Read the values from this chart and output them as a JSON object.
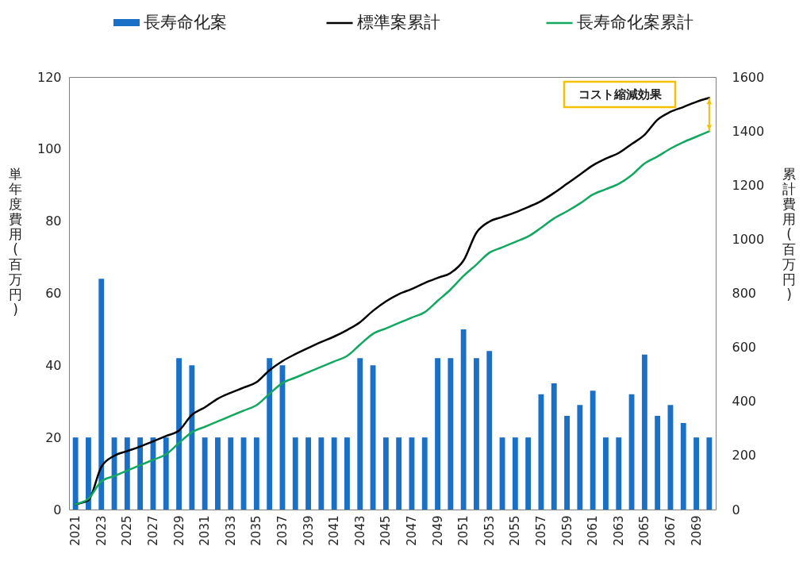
{
  "chart_data": {
    "type": "bar",
    "legend": "top",
    "ylabel": "単年度費用(百万円)",
    "y2label": "累計費用(百万円)",
    "categories": [
      "2021",
      null,
      "2023",
      null,
      "2025",
      null,
      "2027",
      null,
      "2029",
      null,
      "2031",
      null,
      "2033",
      null,
      "2035",
      null,
      "2037",
      null,
      "2039",
      null,
      "2041",
      null,
      "2043",
      null,
      "2045",
      null,
      "2047",
      null,
      "2049",
      null,
      "2051",
      null,
      "2053",
      null,
      "2055",
      null,
      "2057",
      null,
      "2059",
      null,
      "2061",
      null,
      "2063",
      null,
      "2065",
      null,
      "2067",
      null,
      "2069",
      null
    ],
    "ylim": [
      0,
      120
    ],
    "yticks": [
      0,
      20,
      40,
      60,
      80,
      100,
      120
    ],
    "y2lim": [
      0,
      1600
    ],
    "y2ticks": [
      0,
      200,
      400,
      600,
      800,
      1000,
      1200,
      1400,
      1600
    ],
    "series": [
      {
        "name": "長寿命化案",
        "color": "#1a6fc6",
        "values": [
          20,
          20,
          64,
          20,
          20,
          20,
          20,
          20,
          42,
          40,
          20,
          20,
          20,
          20,
          20,
          42,
          40,
          20,
          20,
          20,
          20,
          20,
          42,
          40,
          20,
          20,
          20,
          20,
          42,
          42,
          50,
          42,
          44,
          20,
          20,
          20,
          32,
          35,
          26,
          29,
          33,
          20,
          20,
          32,
          43,
          26,
          29,
          24,
          20,
          20
        ]
      },
      {
        "name": "標準案累計",
        "type": "line",
        "axis": "y2",
        "color": "#000000",
        "values": [
          20,
          35,
          158,
          199,
          216,
          233,
          252,
          272,
          292,
          350,
          378,
          410,
          432,
          451,
          471,
          515,
          549,
          575,
          598,
          620,
          640,
          664,
          693,
          735,
          770,
          797,
          816,
          838,
          857,
          875,
          921,
          1024,
          1065,
          1082,
          1099,
          1119,
          1141,
          1171,
          1205,
          1239,
          1273,
          1298,
          1319,
          1352,
          1386,
          1442,
          1471,
          1489,
          1508,
          1523
        ]
      },
      {
        "name": "長寿命化案累計",
        "type": "line",
        "axis": "y2",
        "color": "#12a860",
        "values": [
          20,
          40,
          104,
          124,
          144,
          164,
          184,
          204,
          246,
          286,
          306,
          326,
          346,
          366,
          386,
          428,
          468,
          488,
          508,
          528,
          548,
          568,
          610,
          650,
          670,
          690,
          710,
          730,
          772,
          814,
          864,
          906,
          950,
          970,
          990,
          1010,
          1042,
          1077,
          1103,
          1132,
          1165,
          1185,
          1205,
          1237,
          1280,
          1306,
          1335,
          1359,
          1379,
          1399
        ]
      }
    ],
    "annotations": [
      "コスト縮減効果"
    ]
  }
}
